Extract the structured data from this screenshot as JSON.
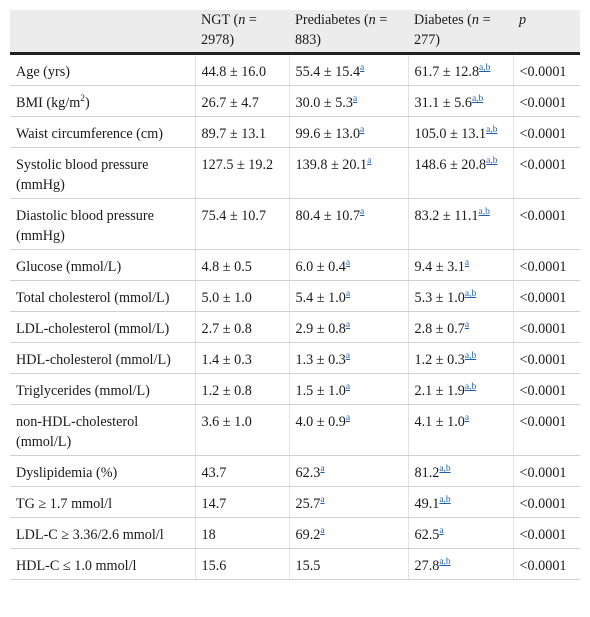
{
  "header": {
    "col1": "",
    "ngt": {
      "label": "NGT (",
      "n": "n",
      "value": " = 2978)"
    },
    "prediabetes": {
      "label": "Prediabetes (",
      "n": "n",
      "value": " = 883)"
    },
    "diabetes": {
      "label": "Diabetes (",
      "n": "n",
      "value": " = 277)"
    },
    "p": "p"
  },
  "rows": [
    {
      "label": "Age (yrs)",
      "ngt": "44.8 ± 16.0",
      "pre": "55.4 ± 15.4",
      "pre_sup": "a",
      "dia": "61.7 ± 12.8",
      "dia_sup": "a,b",
      "p": "<0.0001"
    },
    {
      "label": "BMI (kg/m",
      "label_sup": "2",
      "label_end": ")",
      "ngt": "26.7 ± 4.7",
      "pre": "30.0 ± 5.3",
      "pre_sup": "a",
      "dia": "31.1 ± 5.6",
      "dia_sup": "a,b",
      "p": "<0.0001"
    },
    {
      "label": "Waist circumference (cm)",
      "ngt": "89.7 ± 13.1",
      "pre": "99.6 ± 13.0",
      "pre_sup": "a",
      "dia": "105.0 ± 13.1",
      "dia_sup": "a,b",
      "p": "<0.0001"
    },
    {
      "label": "Systolic blood pressure (mmHg)",
      "ngt": "127.5 ± 19.2",
      "pre": "139.8 ± 20.1",
      "pre_sup": "a",
      "dia": "148.6 ± 20.8",
      "dia_sup": "a,b",
      "p": "<0.0001"
    },
    {
      "label": "Diastolic blood pressure (mmHg)",
      "ngt": "75.4 ± 10.7",
      "pre": "80.4 ± 10.7",
      "pre_sup": "a",
      "dia": "83.2 ± 11.1",
      "dia_sup": "a,b",
      "p": "<0.0001"
    },
    {
      "label": "Glucose (mmol/L)",
      "ngt": "4.8 ± 0.5",
      "pre": "6.0 ± 0.4",
      "pre_sup": "a",
      "dia": "9.4 ± 3.1",
      "dia_sup": "a",
      "p": "<0.0001"
    },
    {
      "label": "Total cholesterol (mmol/L)",
      "ngt": "5.0 ± 1.0",
      "pre": "5.4 ± 1.0",
      "pre_sup": "a",
      "dia": "5.3 ± 1.0",
      "dia_sup": "a,b",
      "p": "<0.0001"
    },
    {
      "label": "LDL-cholesterol (mmol/L)",
      "ngt": "2.7 ± 0.8",
      "pre": "2.9 ± 0.8",
      "pre_sup": "a",
      "dia": "2.8 ± 0.7",
      "dia_sup": "a",
      "p": "<0.0001"
    },
    {
      "label": "HDL-cholesterol (mmol/L)",
      "ngt": "1.4 ± 0.3",
      "pre": "1.3 ± 0.3",
      "pre_sup": "a",
      "dia": "1.2 ± 0.3",
      "dia_sup": "a,b",
      "p": "<0.0001"
    },
    {
      "label": "Triglycerides (mmol/L)",
      "ngt": "1.2 ± 0.8",
      "pre": "1.5 ± 1.0",
      "pre_sup": "a",
      "dia": "2.1 ± 1.9",
      "dia_sup": "a,b",
      "p": "<0.0001"
    },
    {
      "label": "non-HDL-cholesterol (mmol/L)",
      "ngt": "3.6 ± 1.0",
      "pre": "4.0 ± 0.9",
      "pre_sup": "a",
      "dia": "4.1 ± 1.0",
      "dia_sup": "a",
      "p": "<0.0001"
    },
    {
      "label": "Dyslipidemia (%)",
      "ngt": "43.7",
      "pre": "62.3",
      "pre_sup": "a",
      "dia": "81.2",
      "dia_sup": "a,b",
      "p": "<0.0001"
    },
    {
      "label": "TG ≥ 1.7 mmol/l",
      "ngt": "14.7",
      "pre": "25.7",
      "pre_sup": "a",
      "dia": "49.1",
      "dia_sup": "a,b",
      "p": "<0.0001"
    },
    {
      "label": "LDL-C ≥ 3.36/2.6 mmol/l",
      "ngt": "18",
      "pre": "69.2",
      "pre_sup": "a",
      "dia": "62.5",
      "dia_sup": "a",
      "p": "<0.0001"
    },
    {
      "label": "HDL-C ≤ 1.0 mmol/l",
      "ngt": "15.6",
      "pre": "15.5",
      "dia": "27.8",
      "dia_sup": "a,b",
      "p": "<0.0001"
    }
  ],
  "colors": {
    "header_bg": "#ececec",
    "link": "#1a5fb4",
    "rule": "#222222"
  }
}
